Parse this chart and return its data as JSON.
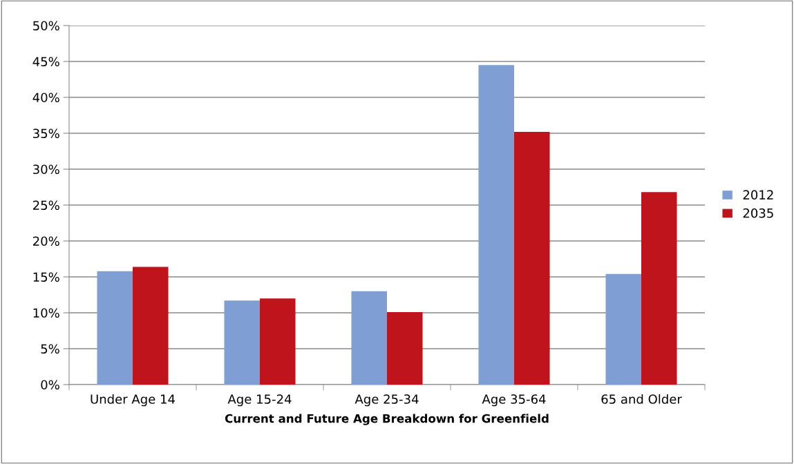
{
  "chart_data": {
    "type": "bar",
    "xlabel": "Current and Future Age Breakdown for Greenfield",
    "categories": [
      "Under Age 14",
      "Age 15-24",
      "Age 25-34",
      "Age 35-64",
      "65 and Older"
    ],
    "series": [
      {
        "name": "2012",
        "color": "#7f9fd4",
        "values": [
          15.8,
          11.7,
          13.0,
          44.5,
          15.4
        ]
      },
      {
        "name": "2035",
        "color": "#c0141c",
        "values": [
          16.4,
          12.0,
          10.1,
          35.2,
          26.8
        ]
      }
    ],
    "ylim": [
      0,
      50
    ],
    "yticks": [
      {
        "value": 0,
        "label": "0%"
      },
      {
        "value": 5,
        "label": "5%"
      },
      {
        "value": 10,
        "label": "10%"
      },
      {
        "value": 15,
        "label": "15%"
      },
      {
        "value": 20,
        "label": "20%"
      },
      {
        "value": 25,
        "label": "25%"
      },
      {
        "value": 30,
        "label": "30%"
      },
      {
        "value": 35,
        "label": "35%"
      },
      {
        "value": 40,
        "label": "40%"
      },
      {
        "value": 45,
        "label": "45%"
      },
      {
        "value": 50,
        "label": "50%"
      }
    ],
    "grid": "y",
    "legend": "right"
  }
}
